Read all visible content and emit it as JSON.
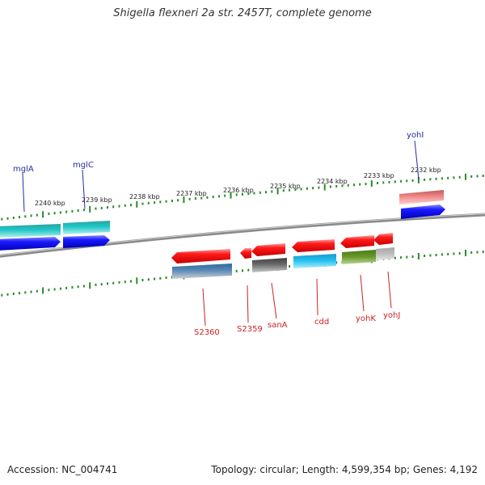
{
  "title": "Shigella flexneri 2a str. 2457T, complete genome",
  "footer": {
    "accession": "Accession: NC_004741",
    "summary": "Topology: circular; Length: 4,599,354 bp; Genes: 4,192"
  },
  "colors": {
    "backbone": "#777777",
    "tick": "#2a8a2a",
    "label_top": "#2a2aa0",
    "label_bottom": "#cc2222"
  },
  "scale": {
    "labels": [
      "2240 kbp",
      "2239 kbp",
      "2238 kbp",
      "2237 kbp",
      "2236 kbp",
      "2235 kbp",
      "2234 kbp",
      "2233 kbp",
      "2232 kbp"
    ]
  },
  "genes_top": [
    {
      "name": "mglA"
    },
    {
      "name": "mglC"
    },
    {
      "name": "yohI"
    }
  ],
  "genes_bottom": [
    {
      "name": "S2360"
    },
    {
      "name": "S2359"
    },
    {
      "name": "sanA"
    },
    {
      "name": "cdd"
    },
    {
      "name": "yohK"
    },
    {
      "name": "yohJ"
    }
  ]
}
